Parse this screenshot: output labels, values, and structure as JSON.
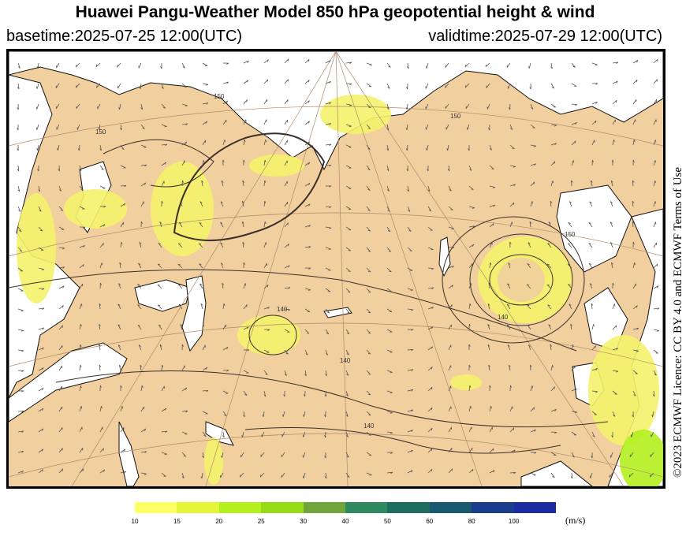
{
  "title": "Huawei Pangu-Weather Model 850 hPa geopotential height & wind",
  "basetime": "basetime:2025-07-25 12:00(UTC)",
  "validtime": "validtime:2025-07-29 12:00(UTC)",
  "credit": "©2023 ECMWF Licence: CC BY 4.0 and ECMWF Terms of Use",
  "map": {
    "land_color": "#f1cf9e",
    "sea_color": "#ffffff",
    "contour_color": "#3a2f2a",
    "wind_color": "#555555",
    "contour_labels": [
      "150",
      "140",
      "140",
      "140",
      "140",
      "150",
      "150",
      "150"
    ]
  },
  "legend": {
    "unit": "(m/s)",
    "ticks": [
      "10",
      "15",
      "20",
      "25",
      "30",
      "40",
      "50",
      "60",
      "80",
      "100"
    ],
    "colors": [
      "#ffff66",
      "#e6f53c",
      "#b4f01e",
      "#96dc14",
      "#6fa53a",
      "#2f8a5f",
      "#1e6e5f",
      "#1a5a70",
      "#1a3c8c",
      "#1e2aa0"
    ]
  }
}
